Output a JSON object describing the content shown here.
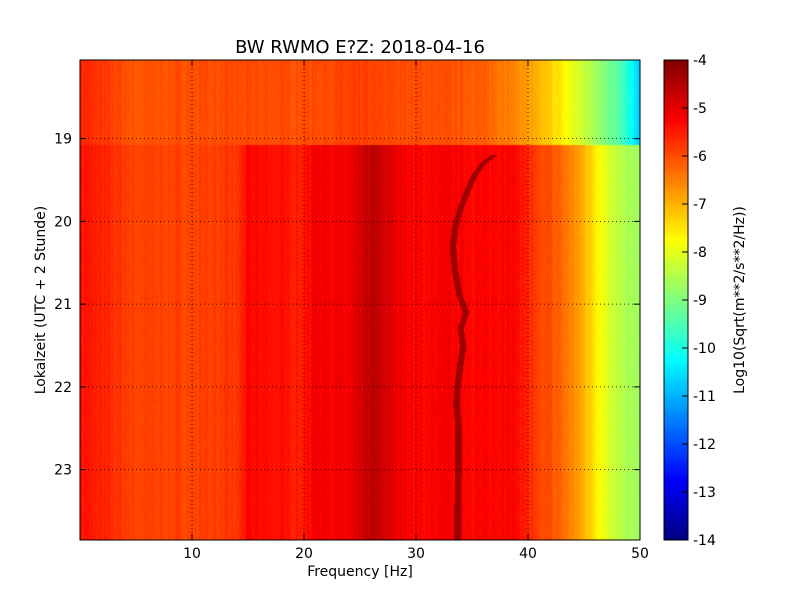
{
  "chart_data": {
    "type": "heatmap",
    "title": "BW RWMO E?Z: 2018-04-16",
    "xlabel": "Frequency [Hz]",
    "ylabel": "Lokalzeit (UTC + 2 Stunde)",
    "xlim": [
      0,
      50
    ],
    "ylim": [
      18.05,
      23.85
    ],
    "x_ticks": [
      {
        "value": 10,
        "label": "10"
      },
      {
        "value": 20,
        "label": "20"
      },
      {
        "value": 30,
        "label": "30"
      },
      {
        "value": 40,
        "label": "40"
      },
      {
        "value": 50,
        "label": "50"
      }
    ],
    "y_ticks": [
      {
        "value": 19,
        "label": "19"
      },
      {
        "value": 20,
        "label": "20"
      },
      {
        "value": 21,
        "label": "21"
      },
      {
        "value": 22,
        "label": "22"
      },
      {
        "value": 23,
        "label": "23"
      }
    ],
    "y_inverted": true,
    "grid": true,
    "colormap": "jet",
    "colorbar": {
      "label": "Log10(Sqrt(m**2/s**2/Hz))",
      "range": [
        -14,
        -4
      ],
      "ticks": [
        "-4",
        "-5",
        "-6",
        "-7",
        "-8",
        "-9",
        "-10",
        "-11",
        "-12",
        "-13",
        "-14"
      ]
    },
    "spectral_profile_before_19": {
      "frequency_hz": [
        0,
        5,
        10,
        15,
        20,
        25,
        30,
        35,
        38,
        40,
        41,
        42,
        43,
        44,
        45,
        46,
        47,
        48,
        49,
        50
      ],
      "log_amplitude": [
        -5.6,
        -6.1,
        -6.0,
        -6.0,
        -6.0,
        -5.9,
        -6.0,
        -6.1,
        -6.4,
        -6.8,
        -7.1,
        -7.3,
        -7.6,
        -8.0,
        -8.3,
        -8.6,
        -9.0,
        -9.4,
        -10.0,
        -10.8
      ]
    },
    "spectral_profile_after_19": {
      "frequency_hz": [
        0,
        5,
        10,
        14,
        15,
        20,
        21,
        24,
        26,
        28,
        30,
        32,
        34,
        36,
        38,
        39,
        40,
        41,
        42,
        43,
        44,
        45,
        46,
        47,
        48,
        49,
        50
      ],
      "log_amplitude": [
        -5.4,
        -5.9,
        -5.9,
        -5.8,
        -5.3,
        -5.5,
        -5.1,
        -5.2,
        -4.6,
        -5.0,
        -5.3,
        -5.2,
        -5.2,
        -5.3,
        -5.2,
        -5.3,
        -5.6,
        -6.0,
        -6.0,
        -6.3,
        -6.6,
        -7.0,
        -7.5,
        -8.0,
        -8.4,
        -8.6,
        -8.7
      ]
    },
    "narrowband_line": {
      "time_h": [
        19.2,
        19.3,
        19.45,
        19.6,
        19.8,
        20.0,
        20.3,
        20.6,
        20.9,
        21.1,
        21.3,
        21.5,
        21.8,
        22.0,
        22.2,
        22.5,
        23.0,
        23.5,
        23.85
      ],
      "frequency_hz": [
        37.0,
        36.0,
        35.2,
        34.7,
        34.1,
        33.6,
        33.3,
        33.5,
        33.9,
        34.5,
        34.0,
        34.2,
        33.9,
        33.7,
        33.6,
        33.8,
        33.8,
        33.7,
        33.7
      ],
      "log_amplitude": -4.3
    }
  }
}
